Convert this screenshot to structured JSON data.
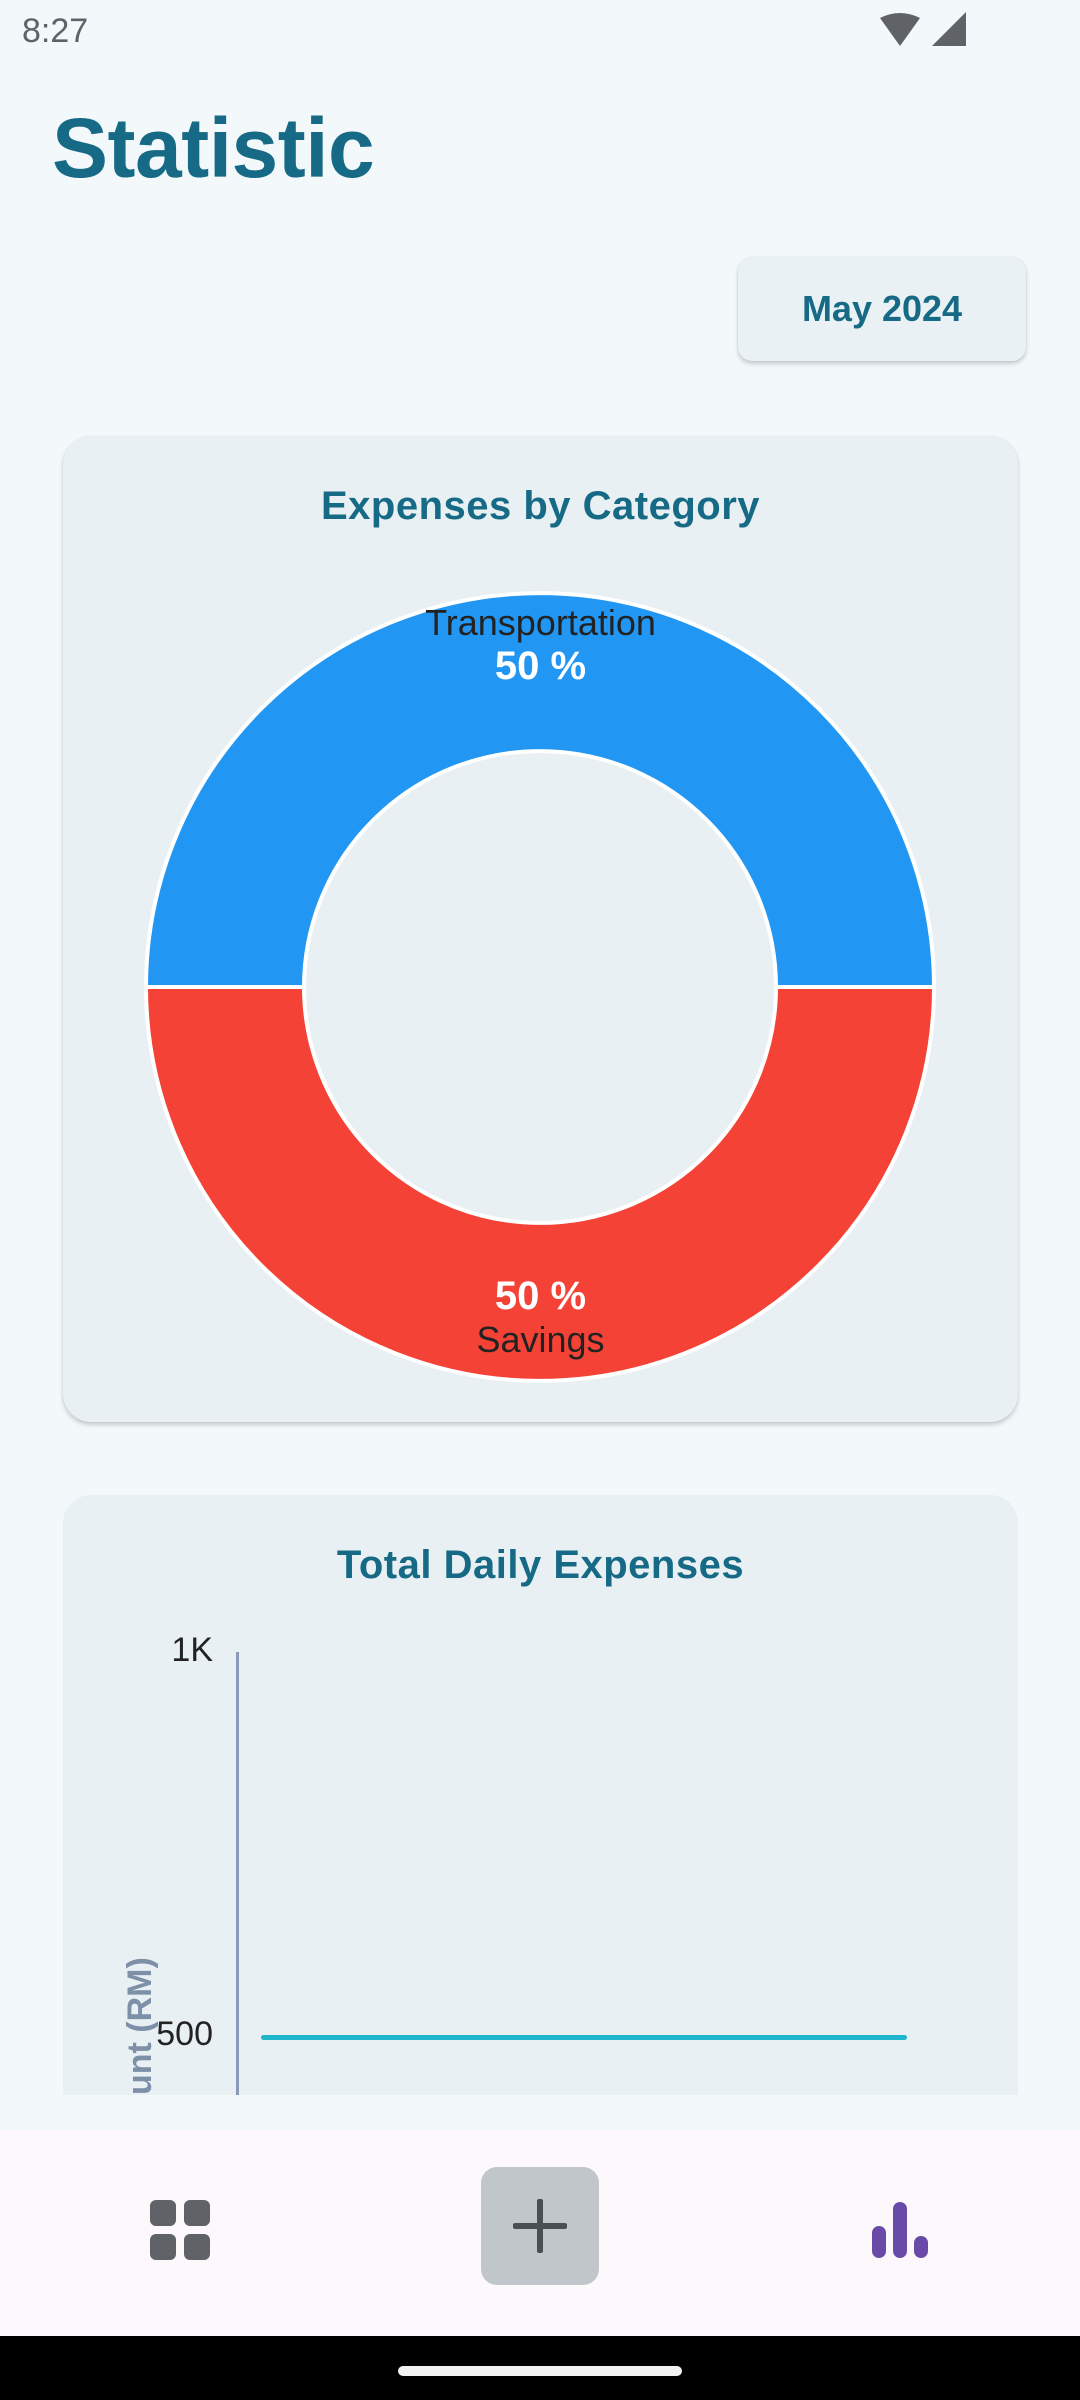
{
  "status_bar": {
    "time": "8:27",
    "icons": [
      "wifi-icon",
      "cell-signal-icon"
    ]
  },
  "header": {
    "title": "Statistic"
  },
  "month_selector": {
    "label": "May 2024"
  },
  "pie_card": {
    "title": "Expenses by Category",
    "slices": [
      {
        "name": "Transportation",
        "percent_label": "50 %",
        "color": "#2196f3"
      },
      {
        "name": "Savings",
        "percent_label": "50 %",
        "color": "#f44336"
      }
    ]
  },
  "line_card": {
    "title": "Total Daily Expenses",
    "y_axis_label": "unt (RM)",
    "y_ticks": [
      "1K",
      "500"
    ]
  },
  "chart_data": [
    {
      "type": "pie",
      "title": "Expenses by Category",
      "style": "donut",
      "categories": [
        "Transportation",
        "Savings"
      ],
      "values": [
        50,
        50
      ],
      "colors": [
        "#2196f3",
        "#f44336"
      ]
    },
    {
      "type": "line",
      "title": "Total Daily Expenses",
      "ylabel": "Amount (RM)",
      "ylim": [
        0,
        1000
      ],
      "y_ticks": [
        "1K",
        "500"
      ],
      "series": [
        {
          "values": [
            500,
            500
          ],
          "color": "#1fb6cc"
        }
      ]
    }
  ],
  "bottom_nav": {
    "items": [
      {
        "icon": "dashboard-grid-icon"
      },
      {
        "icon": "add-icon"
      },
      {
        "icon": "bar-chart-icon"
      }
    ],
    "active_color": "#6a4aa8"
  }
}
